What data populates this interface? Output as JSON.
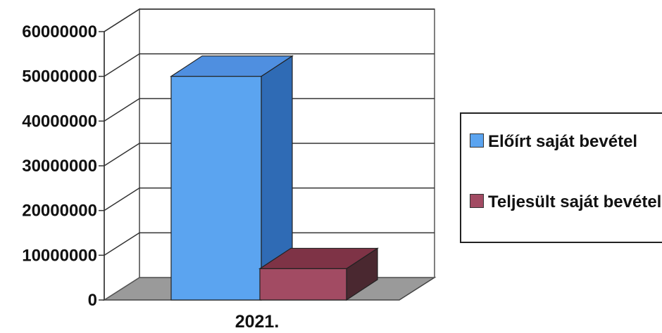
{
  "chart_data": {
    "type": "bar",
    "categories": [
      "2021."
    ],
    "series": [
      {
        "name": "Előírt saját bevétel",
        "values": [
          50000000
        ],
        "color": "#5BA4F0"
      },
      {
        "name": "Teljesült saját bevétel",
        "values": [
          7000000
        ],
        "color": "#A24B63"
      }
    ],
    "ylim": [
      0,
      60000000
    ],
    "ytick_labels": [
      "0",
      "10000000",
      "20000000",
      "30000000",
      "40000000",
      "50000000",
      "60000000"
    ],
    "grid": true,
    "legend_position": "right",
    "style": "3d-clustered-column",
    "colors": {
      "floor": "#9a9a9a",
      "blue_top": "#4f8fe0",
      "blue_side": "#2f6bb5",
      "red_top": "#7e3346",
      "red_side": "#4a2830"
    }
  }
}
